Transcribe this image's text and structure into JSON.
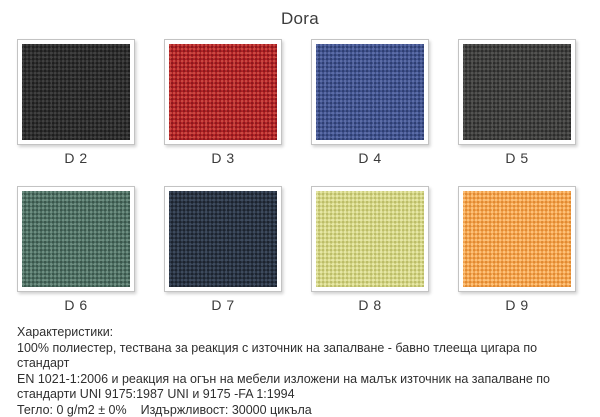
{
  "title": "Dora",
  "swatches": [
    {
      "label": "D 2",
      "base": "#2d2d2d",
      "light": "#414141",
      "dark": "#1e1e1e"
    },
    {
      "label": "D 3",
      "base": "#b22025",
      "light": "#cb4a42",
      "dark": "#8c181c"
    },
    {
      "label": "D 4",
      "base": "#41538f",
      "light": "#5c6da7",
      "dark": "#2e3e71"
    },
    {
      "label": "D 5",
      "base": "#3f3f3e",
      "light": "#545452",
      "dark": "#2c2c2b"
    },
    {
      "label": "D 6",
      "base": "#4d6f63",
      "light": "#6f8f82",
      "dark": "#3a564b"
    },
    {
      "label": "D 7",
      "base": "#2a3442",
      "light": "#3e4b5e",
      "dark": "#1c232e"
    },
    {
      "label": "D 8",
      "base": "#d3d485",
      "light": "#e6e7a6",
      "dark": "#bcbd68"
    },
    {
      "label": "D 9",
      "base": "#f3a24d",
      "light": "#fcc27b",
      "dark": "#e08a32"
    }
  ],
  "characteristics": {
    "heading": "Характеристики:",
    "lines": [
      "100% полиестер, тествана за реакция с източник на запалване - бавно тлееща цигара по стандарт",
      "EN 1021-1:2006 и реакция на огън на мебели изложени на малък източник на запалване по",
      "стандарти UNI 9175:1987 UNI и 9175 -FA 1:1994"
    ],
    "weight": "Тегло: 0 g/m2 ± 0%",
    "durability": "Издържливост: 30000 цикъла"
  }
}
